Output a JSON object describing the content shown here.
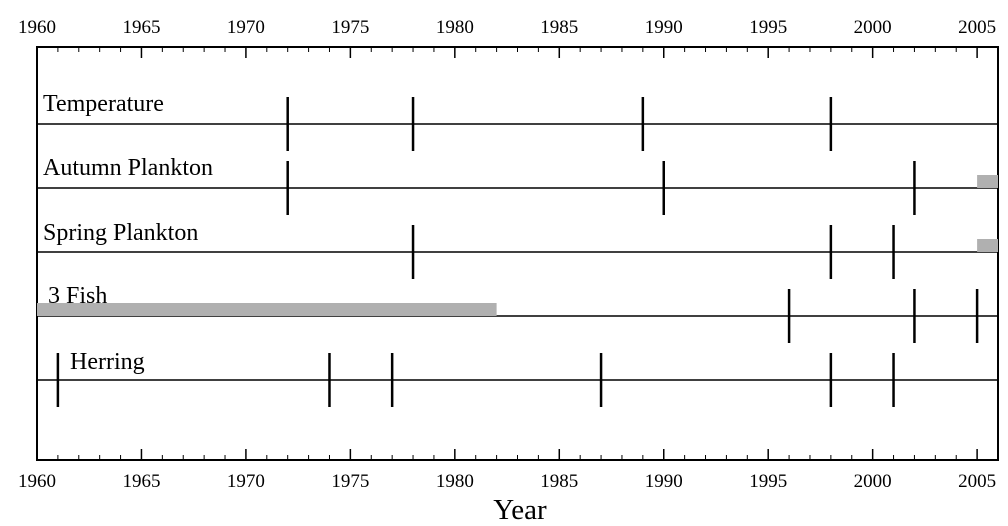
{
  "chart_data": {
    "type": "timeline",
    "xlabel": "Year",
    "xlim": [
      1960,
      2006
    ],
    "tick_labels": [
      "1960",
      "1965",
      "1970",
      "1975",
      "1980",
      "1985",
      "1990",
      "1995",
      "2000",
      "2005"
    ],
    "tick_values": [
      1960,
      1965,
      1970,
      1975,
      1980,
      1985,
      1990,
      1995,
      2000,
      2005
    ],
    "minor_tick_step": 1,
    "grid": false,
    "break_color": "#000000",
    "gap_color": "#b0b0b0",
    "series": [
      {
        "name": "Temperature",
        "breaks": [
          1972,
          1978,
          1989,
          1998
        ],
        "gaps": []
      },
      {
        "name": "Autumn Plankton",
        "breaks": [
          1972,
          1990,
          2002
        ],
        "gaps": [
          [
            2005,
            2006
          ]
        ]
      },
      {
        "name": "Spring Plankton",
        "breaks": [
          1978,
          1998,
          2001
        ],
        "gaps": [
          [
            2005,
            2006
          ]
        ]
      },
      {
        "name": "3 Fish",
        "breaks": [
          1996,
          2002,
          2005
        ],
        "gaps": [
          [
            1960,
            1982
          ]
        ]
      },
      {
        "name": "Herring",
        "breaks": [
          1961,
          1974,
          1977,
          1987,
          1998,
          2001
        ],
        "gaps": []
      }
    ]
  }
}
